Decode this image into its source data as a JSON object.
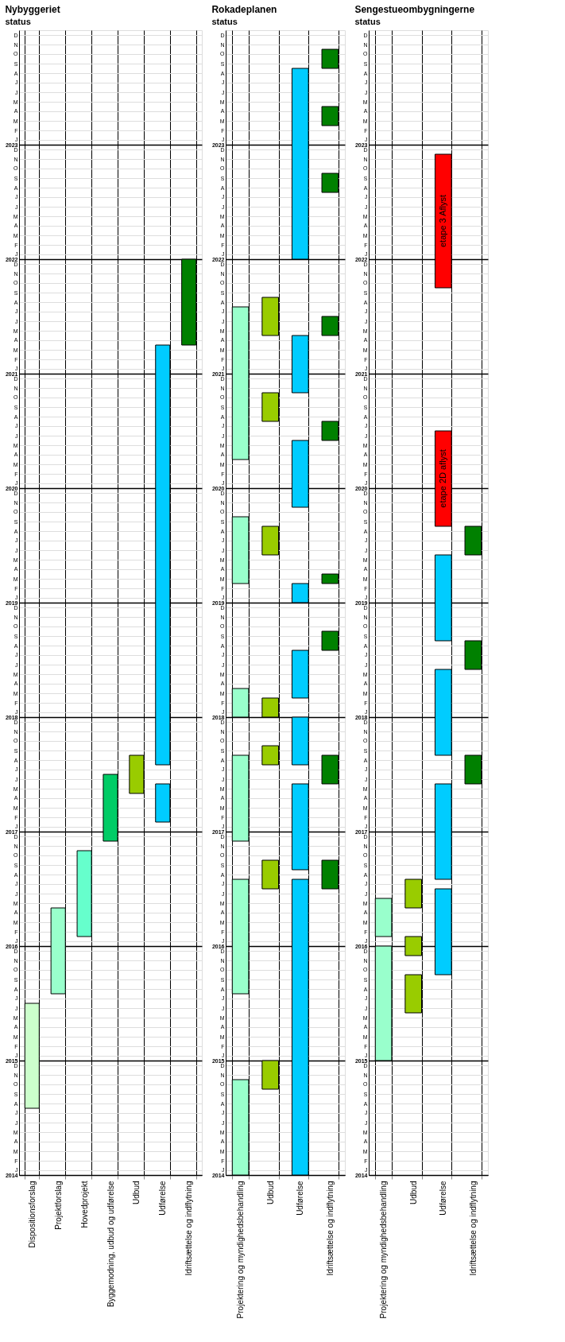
{
  "chart_data": [
    {
      "type": "bar",
      "title": "Nybyggeriet",
      "annotations": [
        "status"
      ],
      "grid": true,
      "categories": [
        "Dispositionsforslag",
        "Projektforslag",
        "Hovedprojekt",
        "Byggemodning, udbud og udførelse",
        "Udbud",
        "Udførelse",
        "Idriftsættelse og indflytning"
      ],
      "ylim": [
        2014,
        2024
      ],
      "yticks": [
        2014,
        {
          "value": 2014.0417,
          "label": "J"
        },
        {
          "value": 2014.125,
          "label": "F"
        },
        {
          "value": 2014.2083,
          "label": "M"
        },
        {
          "value": 2014.2917,
          "label": "A"
        },
        {
          "value": 2014.375,
          "label": "M"
        },
        {
          "value": 2014.4583,
          "label": "J"
        },
        {
          "value": 2014.5417,
          "label": "J"
        },
        {
          "value": 2014.625,
          "label": "A"
        },
        {
          "value": 2014.7083,
          "label": "S"
        },
        {
          "value": 2014.7917,
          "label": "O"
        },
        {
          "value": 2014.875,
          "label": "N"
        },
        {
          "value": 2014.9583,
          "label": "D"
        },
        2015,
        {
          "value": 2015.0417,
          "label": "J"
        },
        {
          "value": 2015.125,
          "label": "F"
        },
        {
          "value": 2015.2083,
          "label": "M"
        },
        {
          "value": 2015.2917,
          "label": "A"
        },
        {
          "value": 2015.375,
          "label": "M"
        },
        {
          "value": 2015.4583,
          "label": "J"
        },
        {
          "value": 2015.5417,
          "label": "J"
        },
        {
          "value": 2015.625,
          "label": "A"
        },
        {
          "value": 2015.7083,
          "label": "S"
        },
        {
          "value": 2015.7917,
          "label": "O"
        },
        {
          "value": 2015.875,
          "label": "N"
        },
        {
          "value": 2015.9583,
          "label": "D"
        },
        2016,
        {
          "value": 2016.0417,
          "label": "J"
        },
        {
          "value": 2016.125,
          "label": "F"
        },
        {
          "value": 2016.2083,
          "label": "M"
        },
        {
          "value": 2016.2917,
          "label": "A"
        },
        {
          "value": 2016.375,
          "label": "M"
        },
        {
          "value": 2016.4583,
          "label": "J"
        },
        {
          "value": 2016.5417,
          "label": "J"
        },
        {
          "value": 2016.625,
          "label": "A"
        },
        {
          "value": 2016.7083,
          "label": "S"
        },
        {
          "value": 2016.7917,
          "label": "O"
        },
        {
          "value": 2016.875,
          "label": "N"
        },
        {
          "value": 2016.9583,
          "label": "D"
        },
        2017,
        {
          "value": 2017.0417,
          "label": "J"
        },
        {
          "value": 2017.125,
          "label": "F"
        },
        {
          "value": 2017.2083,
          "label": "M"
        },
        {
          "value": 2017.2917,
          "label": "A"
        },
        {
          "value": 2017.375,
          "label": "M"
        },
        {
          "value": 2017.4583,
          "label": "J"
        },
        {
          "value": 2017.5417,
          "label": "J"
        },
        {
          "value": 2017.625,
          "label": "A"
        },
        {
          "value": 2017.7083,
          "label": "S"
        },
        {
          "value": 2017.7917,
          "label": "O"
        },
        {
          "value": 2017.875,
          "label": "N"
        },
        {
          "value": 2017.9583,
          "label": "D"
        },
        2018,
        {
          "value": 2018.0417,
          "label": "J"
        },
        {
          "value": 2018.125,
          "label": "F"
        },
        {
          "value": 2018.2083,
          "label": "M"
        },
        {
          "value": 2018.2917,
          "label": "A"
        },
        {
          "value": 2018.375,
          "label": "M"
        },
        {
          "value": 2018.4583,
          "label": "J"
        },
        {
          "value": 2018.5417,
          "label": "J"
        },
        {
          "value": 2018.625,
          "label": "A"
        },
        {
          "value": 2018.7083,
          "label": "S"
        },
        {
          "value": 2018.7917,
          "label": "O"
        },
        {
          "value": 2018.875,
          "label": "N"
        },
        {
          "value": 2018.9583,
          "label": "D"
        },
        2019,
        {
          "value": 2019.0417,
          "label": "J"
        },
        {
          "value": 2019.125,
          "label": "F"
        },
        {
          "value": 2019.2083,
          "label": "M"
        },
        {
          "value": 2019.2917,
          "label": "A"
        },
        {
          "value": 2019.375,
          "label": "M"
        },
        {
          "value": 2019.4583,
          "label": "J"
        },
        {
          "value": 2019.5417,
          "label": "J"
        },
        {
          "value": 2019.625,
          "label": "A"
        },
        {
          "value": 2019.7083,
          "label": "S"
        },
        {
          "value": 2019.7917,
          "label": "O"
        },
        {
          "value": 2019.875,
          "label": "N"
        },
        {
          "value": 2019.9583,
          "label": "D"
        },
        2020,
        {
          "value": 2020.0417,
          "label": "J"
        },
        {
          "value": 2020.125,
          "label": "F"
        },
        {
          "value": 2020.2083,
          "label": "M"
        },
        {
          "value": 2020.2917,
          "label": "A"
        },
        {
          "value": 2020.375,
          "label": "M"
        },
        {
          "value": 2020.4583,
          "label": "J"
        },
        {
          "value": 2020.5417,
          "label": "J"
        },
        {
          "value": 2020.625,
          "label": "A"
        },
        {
          "value": 2020.7083,
          "label": "S"
        },
        {
          "value": 2020.7917,
          "label": "O"
        },
        {
          "value": 2020.875,
          "label": "N"
        },
        {
          "value": 2020.9583,
          "label": "D"
        },
        2021,
        {
          "value": 2021.0417,
          "label": "J"
        },
        {
          "value": 2021.125,
          "label": "F"
        },
        {
          "value": 2021.2083,
          "label": "M"
        },
        {
          "value": 2021.2917,
          "label": "A"
        },
        {
          "value": 2021.375,
          "label": "M"
        },
        {
          "value": 2021.4583,
          "label": "J"
        },
        {
          "value": 2021.5417,
          "label": "J"
        },
        {
          "value": 2021.625,
          "label": "A"
        },
        {
          "value": 2021.7083,
          "label": "S"
        },
        {
          "value": 2021.7917,
          "label": "O"
        },
        {
          "value": 2021.875,
          "label": "N"
        },
        {
          "value": 2021.9583,
          "label": "D"
        },
        2022,
        {
          "value": 2022.0417,
          "label": "J"
        },
        {
          "value": 2022.125,
          "label": "F"
        },
        {
          "value": 2022.2083,
          "label": "M"
        },
        {
          "value": 2022.2917,
          "label": "A"
        },
        {
          "value": 2022.375,
          "label": "M"
        },
        {
          "value": 2022.4583,
          "label": "J"
        },
        {
          "value": 2022.5417,
          "label": "J"
        },
        {
          "value": 2022.625,
          "label": "A"
        },
        {
          "value": 2022.7083,
          "label": "S"
        },
        {
          "value": 2022.7917,
          "label": "O"
        },
        {
          "value": 2022.875,
          "label": "N"
        },
        {
          "value": 2022.9583,
          "label": "D"
        },
        2023,
        {
          "value": 2023.0417,
          "label": "J"
        },
        {
          "value": 2023.125,
          "label": "F"
        },
        {
          "value": 2023.2083,
          "label": "M"
        },
        {
          "value": 2023.2917,
          "label": "A"
        },
        {
          "value": 2023.375,
          "label": "M"
        },
        {
          "value": 2023.4583,
          "label": "J"
        },
        {
          "value": 2023.5417,
          "label": "J"
        },
        {
          "value": 2023.625,
          "label": "A"
        },
        {
          "value": 2023.7083,
          "label": "S"
        },
        {
          "value": 2023.7917,
          "label": "O"
        },
        {
          "value": 2023.875,
          "label": "N"
        },
        {
          "value": 2023.9583,
          "label": "D"
        }
      ],
      "series": [
        {
          "base": [
            2014.5833,
            2015.5833,
            2016.0833,
            2016.9167,
            2017.3333,
            2017.0833,
            2021.25
          ],
          "values": [
            0.9167,
            0.75,
            0.75,
            0.5833,
            0.3333,
            0.3333,
            0.75
          ],
          "colors": [
            "#ccffcc",
            "#99ffcc",
            "#66ffcc",
            "#00cc66",
            "#99cc00",
            "#00ccff",
            "#008000"
          ]
        },
        {
          "base": [
            null,
            null,
            null,
            null,
            null,
            2017.5833,
            null
          ],
          "values": [
            null,
            null,
            null,
            null,
            null,
            3.6667,
            null
          ],
          "colors": [
            null,
            null,
            null,
            null,
            null,
            "#00ccff",
            null
          ]
        }
      ]
    },
    {
      "type": "bar",
      "title": "Rokadeplanen",
      "annotations": [
        "status"
      ],
      "grid": true,
      "categories": [
        "Projektering og myndighedsbehandling",
        "Udbud",
        "Udførelse",
        "Idriftsættelse og indflytning"
      ],
      "ylim": [
        2014,
        2024
      ],
      "yticks": [
        2014,
        {
          "value": 2014.0417,
          "label": "J"
        },
        {
          "value": 2014.125,
          "label": "F"
        },
        {
          "value": 2014.2083,
          "label": "M"
        },
        {
          "value": 2014.2917,
          "label": "A"
        },
        {
          "value": 2014.375,
          "label": "M"
        },
        {
          "value": 2014.4583,
          "label": "J"
        },
        {
          "value": 2014.5417,
          "label": "J"
        },
        {
          "value": 2014.625,
          "label": "A"
        },
        {
          "value": 2014.7083,
          "label": "S"
        },
        {
          "value": 2014.7917,
          "label": "O"
        },
        {
          "value": 2014.875,
          "label": "N"
        },
        {
          "value": 2014.9583,
          "label": "D"
        },
        2015,
        {
          "value": 2015.0417,
          "label": "J"
        },
        {
          "value": 2015.125,
          "label": "F"
        },
        {
          "value": 2015.2083,
          "label": "M"
        },
        {
          "value": 2015.2917,
          "label": "A"
        },
        {
          "value": 2015.375,
          "label": "M"
        },
        {
          "value": 2015.4583,
          "label": "J"
        },
        {
          "value": 2015.5417,
          "label": "J"
        },
        {
          "value": 2015.625,
          "label": "A"
        },
        {
          "value": 2015.7083,
          "label": "S"
        },
        {
          "value": 2015.7917,
          "label": "O"
        },
        {
          "value": 2015.875,
          "label": "N"
        },
        {
          "value": 2015.9583,
          "label": "D"
        },
        2016,
        {
          "value": 2016.0417,
          "label": "J"
        },
        {
          "value": 2016.125,
          "label": "F"
        },
        {
          "value": 2016.2083,
          "label": "M"
        },
        {
          "value": 2016.2917,
          "label": "A"
        },
        {
          "value": 2016.375,
          "label": "M"
        },
        {
          "value": 2016.4583,
          "label": "J"
        },
        {
          "value": 2016.5417,
          "label": "J"
        },
        {
          "value": 2016.625,
          "label": "A"
        },
        {
          "value": 2016.7083,
          "label": "S"
        },
        {
          "value": 2016.7917,
          "label": "O"
        },
        {
          "value": 2016.875,
          "label": "N"
        },
        {
          "value": 2016.9583,
          "label": "D"
        },
        2017,
        {
          "value": 2017.0417,
          "label": "J"
        },
        {
          "value": 2017.125,
          "label": "F"
        },
        {
          "value": 2017.2083,
          "label": "M"
        },
        {
          "value": 2017.2917,
          "label": "A"
        },
        {
          "value": 2017.375,
          "label": "M"
        },
        {
          "value": 2017.4583,
          "label": "J"
        },
        {
          "value": 2017.5417,
          "label": "J"
        },
        {
          "value": 2017.625,
          "label": "A"
        },
        {
          "value": 2017.7083,
          "label": "S"
        },
        {
          "value": 2017.7917,
          "label": "O"
        },
        {
          "value": 2017.875,
          "label": "N"
        },
        {
          "value": 2017.9583,
          "label": "D"
        },
        2018,
        {
          "value": 2018.0417,
          "label": "J"
        },
        {
          "value": 2018.125,
          "label": "F"
        },
        {
          "value": 2018.2083,
          "label": "M"
        },
        {
          "value": 2018.2917,
          "label": "A"
        },
        {
          "value": 2018.375,
          "label": "M"
        },
        {
          "value": 2018.4583,
          "label": "J"
        },
        {
          "value": 2018.5417,
          "label": "J"
        },
        {
          "value": 2018.625,
          "label": "A"
        },
        {
          "value": 2018.7083,
          "label": "S"
        },
        {
          "value": 2018.7917,
          "label": "O"
        },
        {
          "value": 2018.875,
          "label": "N"
        },
        {
          "value": 2018.9583,
          "label": "D"
        },
        2019,
        {
          "value": 2019.0417,
          "label": "J"
        },
        {
          "value": 2019.125,
          "label": "F"
        },
        {
          "value": 2019.2083,
          "label": "M"
        },
        {
          "value": 2019.2917,
          "label": "A"
        },
        {
          "value": 2019.375,
          "label": "M"
        },
        {
          "value": 2019.4583,
          "label": "J"
        },
        {
          "value": 2019.5417,
          "label": "J"
        },
        {
          "value": 2019.625,
          "label": "A"
        },
        {
          "value": 2019.7083,
          "label": "S"
        },
        {
          "value": 2019.7917,
          "label": "O"
        },
        {
          "value": 2019.875,
          "label": "N"
        },
        {
          "value": 2019.9583,
          "label": "D"
        },
        2020,
        {
          "value": 2020.0417,
          "label": "J"
        },
        {
          "value": 2020.125,
          "label": "F"
        },
        {
          "value": 2020.2083,
          "label": "M"
        },
        {
          "value": 2020.2917,
          "label": "A"
        },
        {
          "value": 2020.375,
          "label": "M"
        },
        {
          "value": 2020.4583,
          "label": "J"
        },
        {
          "value": 2020.5417,
          "label": "J"
        },
        {
          "value": 2020.625,
          "label": "A"
        },
        {
          "value": 2020.7083,
          "label": "S"
        },
        {
          "value": 2020.7917,
          "label": "O"
        },
        {
          "value": 2020.875,
          "label": "N"
        },
        {
          "value": 2020.9583,
          "label": "D"
        },
        2021,
        {
          "value": 2021.0417,
          "label": "J"
        },
        {
          "value": 2021.125,
          "label": "F"
        },
        {
          "value": 2021.2083,
          "label": "M"
        },
        {
          "value": 2021.2917,
          "label": "A"
        },
        {
          "value": 2021.375,
          "label": "M"
        },
        {
          "value": 2021.4583,
          "label": "J"
        },
        {
          "value": 2021.5417,
          "label": "J"
        },
        {
          "value": 2021.625,
          "label": "A"
        },
        {
          "value": 2021.7083,
          "label": "S"
        },
        {
          "value": 2021.7917,
          "label": "O"
        },
        {
          "value": 2021.875,
          "label": "N"
        },
        {
          "value": 2021.9583,
          "label": "D"
        },
        2022,
        {
          "value": 2022.0417,
          "label": "J"
        },
        {
          "value": 2022.125,
          "label": "F"
        },
        {
          "value": 2022.2083,
          "label": "M"
        },
        {
          "value": 2022.2917,
          "label": "A"
        },
        {
          "value": 2022.375,
          "label": "M"
        },
        {
          "value": 2022.4583,
          "label": "J"
        },
        {
          "value": 2022.5417,
          "label": "J"
        },
        {
          "value": 2022.625,
          "label": "A"
        },
        {
          "value": 2022.7083,
          "label": "S"
        },
        {
          "value": 2022.7917,
          "label": "O"
        },
        {
          "value": 2022.875,
          "label": "N"
        },
        {
          "value": 2022.9583,
          "label": "D"
        },
        2023,
        {
          "value": 2023.0417,
          "label": "J"
        },
        {
          "value": 2023.125,
          "label": "F"
        },
        {
          "value": 2023.2083,
          "label": "M"
        },
        {
          "value": 2023.2917,
          "label": "A"
        },
        {
          "value": 2023.375,
          "label": "M"
        },
        {
          "value": 2023.4583,
          "label": "J"
        },
        {
          "value": 2023.5417,
          "label": "J"
        },
        {
          "value": 2023.625,
          "label": "A"
        },
        {
          "value": 2023.7083,
          "label": "S"
        },
        {
          "value": 2023.7917,
          "label": "O"
        },
        {
          "value": 2023.875,
          "label": "N"
        },
        {
          "value": 2023.9583,
          "label": "D"
        }
      ],
      "series": [
        {
          "base": [
            2014,
            2014.75,
            2014,
            2016.5
          ],
          "values": [
            0.8333,
            0.25,
            2.5833,
            0.25
          ],
          "colors": [
            "#99ffcc",
            "#99cc00",
            "#00ccff",
            "#008000"
          ]
        },
        {
          "base": [
            2015.5833,
            2016.5,
            2016.6667,
            2017.4167
          ],
          "values": [
            1,
            0.25,
            0.75,
            0.25
          ],
          "colors": [
            "#99ffcc",
            "#99cc00",
            "#00ccff",
            "#008000"
          ]
        },
        {
          "base": [
            2016.9167,
            2017.5833,
            2017.5833,
            2018.5833
          ],
          "values": [
            0.75,
            0.1667,
            0.4167,
            0.1667
          ],
          "colors": [
            "#99ffcc",
            "#99cc00",
            "#00ccff",
            "#008000"
          ]
        },
        {
          "base": [
            2018,
            2018,
            2018.1667,
            2019.1667
          ],
          "values": [
            0.25,
            0.1667,
            0.4167,
            0.0833
          ],
          "colors": [
            "#99ffcc",
            "#99cc00",
            "#00ccff",
            "#008000"
          ]
        },
        {
          "base": [
            2019.1667,
            2019.4167,
            2019,
            2020.4167
          ],
          "values": [
            0.5833,
            0.25,
            0.1667,
            0.1667
          ],
          "colors": [
            "#99ffcc",
            "#99cc00",
            "#00ccff",
            "#008000"
          ]
        },
        {
          "base": [
            2020.25,
            2020.5833,
            2019.8333,
            2021.3333
          ],
          "values": [
            1.3333,
            0.25,
            0.5833,
            0.1667
          ],
          "colors": [
            "#99ffcc",
            "#99cc00",
            "#00ccff",
            "#008000"
          ]
        },
        {
          "base": [
            null,
            2021.3333,
            2020.8333,
            2022.5833
          ],
          "values": [
            null,
            0.3333,
            0.5,
            0.1667
          ],
          "colors": [
            null,
            "#99cc00",
            "#00ccff",
            "#008000"
          ]
        },
        {
          "base": [
            null,
            null,
            2022,
            2023.1667
          ],
          "values": [
            null,
            null,
            1.6667,
            0.1667
          ],
          "colors": [
            null,
            null,
            "#00ccff",
            "#008000"
          ]
        },
        {
          "base": [
            null,
            null,
            null,
            2023.6667
          ],
          "values": [
            null,
            null,
            null,
            0.1667
          ],
          "colors": [
            null,
            null,
            null,
            "#008000"
          ]
        }
      ]
    },
    {
      "type": "bar",
      "title": "Sengestueombygningerne",
      "annotations": [
        "status"
      ],
      "grid": true,
      "categories": [
        "Projektering og myndighedsbehandling",
        "Udbud",
        "Udførelse",
        "Idriftsættelse og indflytning"
      ],
      "ylim": [
        2014,
        2024
      ],
      "yticks": [
        2014,
        {
          "value": 2014.0417,
          "label": "J"
        },
        {
          "value": 2014.125,
          "label": "F"
        },
        {
          "value": 2014.2083,
          "label": "M"
        },
        {
          "value": 2014.2917,
          "label": "A"
        },
        {
          "value": 2014.375,
          "label": "M"
        },
        {
          "value": 2014.4583,
          "label": "J"
        },
        {
          "value": 2014.5417,
          "label": "J"
        },
        {
          "value": 2014.625,
          "label": "A"
        },
        {
          "value": 2014.7083,
          "label": "S"
        },
        {
          "value": 2014.7917,
          "label": "O"
        },
        {
          "value": 2014.875,
          "label": "N"
        },
        {
          "value": 2014.9583,
          "label": "D"
        },
        2015,
        {
          "value": 2015.0417,
          "label": "J"
        },
        {
          "value": 2015.125,
          "label": "F"
        },
        {
          "value": 2015.2083,
          "label": "M"
        },
        {
          "value": 2015.2917,
          "label": "A"
        },
        {
          "value": 2015.375,
          "label": "M"
        },
        {
          "value": 2015.4583,
          "label": "J"
        },
        {
          "value": 2015.5417,
          "label": "J"
        },
        {
          "value": 2015.625,
          "label": "A"
        },
        {
          "value": 2015.7083,
          "label": "S"
        },
        {
          "value": 2015.7917,
          "label": "O"
        },
        {
          "value": 2015.875,
          "label": "N"
        },
        {
          "value": 2015.9583,
          "label": "D"
        },
        2016,
        {
          "value": 2016.0417,
          "label": "J"
        },
        {
          "value": 2016.125,
          "label": "F"
        },
        {
          "value": 2016.2083,
          "label": "M"
        },
        {
          "value": 2016.2917,
          "label": "A"
        },
        {
          "value": 2016.375,
          "label": "M"
        },
        {
          "value": 2016.4583,
          "label": "J"
        },
        {
          "value": 2016.5417,
          "label": "J"
        },
        {
          "value": 2016.625,
          "label": "A"
        },
        {
          "value": 2016.7083,
          "label": "S"
        },
        {
          "value": 2016.7917,
          "label": "O"
        },
        {
          "value": 2016.875,
          "label": "N"
        },
        {
          "value": 2016.9583,
          "label": "D"
        },
        2017,
        {
          "value": 2017.0417,
          "label": "J"
        },
        {
          "value": 2017.125,
          "label": "F"
        },
        {
          "value": 2017.2083,
          "label": "M"
        },
        {
          "value": 2017.2917,
          "label": "A"
        },
        {
          "value": 2017.375,
          "label": "M"
        },
        {
          "value": 2017.4583,
          "label": "J"
        },
        {
          "value": 2017.5417,
          "label": "J"
        },
        {
          "value": 2017.625,
          "label": "A"
        },
        {
          "value": 2017.7083,
          "label": "S"
        },
        {
          "value": 2017.7917,
          "label": "O"
        },
        {
          "value": 2017.875,
          "label": "N"
        },
        {
          "value": 2017.9583,
          "label": "D"
        },
        2018,
        {
          "value": 2018.0417,
          "label": "J"
        },
        {
          "value": 2018.125,
          "label": "F"
        },
        {
          "value": 2018.2083,
          "label": "M"
        },
        {
          "value": 2018.2917,
          "label": "A"
        },
        {
          "value": 2018.375,
          "label": "M"
        },
        {
          "value": 2018.4583,
          "label": "J"
        },
        {
          "value": 2018.5417,
          "label": "J"
        },
        {
          "value": 2018.625,
          "label": "A"
        },
        {
          "value": 2018.7083,
          "label": "S"
        },
        {
          "value": 2018.7917,
          "label": "O"
        },
        {
          "value": 2018.875,
          "label": "N"
        },
        {
          "value": 2018.9583,
          "label": "D"
        },
        2019,
        {
          "value": 2019.0417,
          "label": "J"
        },
        {
          "value": 2019.125,
          "label": "F"
        },
        {
          "value": 2019.2083,
          "label": "M"
        },
        {
          "value": 2019.2917,
          "label": "A"
        },
        {
          "value": 2019.375,
          "label": "M"
        },
        {
          "value": 2019.4583,
          "label": "J"
        },
        {
          "value": 2019.5417,
          "label": "J"
        },
        {
          "value": 2019.625,
          "label": "A"
        },
        {
          "value": 2019.7083,
          "label": "S"
        },
        {
          "value": 2019.7917,
          "label": "O"
        },
        {
          "value": 2019.875,
          "label": "N"
        },
        {
          "value": 2019.9583,
          "label": "D"
        },
        2020,
        {
          "value": 2020.0417,
          "label": "J"
        },
        {
          "value": 2020.125,
          "label": "F"
        },
        {
          "value": 2020.2083,
          "label": "M"
        },
        {
          "value": 2020.2917,
          "label": "A"
        },
        {
          "value": 2020.375,
          "label": "M"
        },
        {
          "value": 2020.4583,
          "label": "J"
        },
        {
          "value": 2020.5417,
          "label": "J"
        },
        {
          "value": 2020.625,
          "label": "A"
        },
        {
          "value": 2020.7083,
          "label": "S"
        },
        {
          "value": 2020.7917,
          "label": "O"
        },
        {
          "value": 2020.875,
          "label": "N"
        },
        {
          "value": 2020.9583,
          "label": "D"
        },
        2021,
        {
          "value": 2021.0417,
          "label": "J"
        },
        {
          "value": 2021.125,
          "label": "F"
        },
        {
          "value": 2021.2083,
          "label": "M"
        },
        {
          "value": 2021.2917,
          "label": "A"
        },
        {
          "value": 2021.375,
          "label": "M"
        },
        {
          "value": 2021.4583,
          "label": "J"
        },
        {
          "value": 2021.5417,
          "label": "J"
        },
        {
          "value": 2021.625,
          "label": "A"
        },
        {
          "value": 2021.7083,
          "label": "S"
        },
        {
          "value": 2021.7917,
          "label": "O"
        },
        {
          "value": 2021.875,
          "label": "N"
        },
        {
          "value": 2021.9583,
          "label": "D"
        },
        2022,
        {
          "value": 2022.0417,
          "label": "J"
        },
        {
          "value": 2022.125,
          "label": "F"
        },
        {
          "value": 2022.2083,
          "label": "M"
        },
        {
          "value": 2022.2917,
          "label": "A"
        },
        {
          "value": 2022.375,
          "label": "M"
        },
        {
          "value": 2022.4583,
          "label": "J"
        },
        {
          "value": 2022.5417,
          "label": "J"
        },
        {
          "value": 2022.625,
          "label": "A"
        },
        {
          "value": 2022.7083,
          "label": "S"
        },
        {
          "value": 2022.7917,
          "label": "O"
        },
        {
          "value": 2022.875,
          "label": "N"
        },
        {
          "value": 2022.9583,
          "label": "D"
        },
        2023,
        {
          "value": 2023.0417,
          "label": "J"
        },
        {
          "value": 2023.125,
          "label": "F"
        },
        {
          "value": 2023.2083,
          "label": "M"
        },
        {
          "value": 2023.2917,
          "label": "A"
        },
        {
          "value": 2023.375,
          "label": "M"
        },
        {
          "value": 2023.4583,
          "label": "J"
        },
        {
          "value": 2023.5417,
          "label": "J"
        },
        {
          "value": 2023.625,
          "label": "A"
        },
        {
          "value": 2023.7083,
          "label": "S"
        },
        {
          "value": 2023.7917,
          "label": "O"
        },
        {
          "value": 2023.875,
          "label": "N"
        },
        {
          "value": 2023.9583,
          "label": "D"
        }
      ],
      "series": [
        {
          "base": [
            2015,
            2015.4167,
            2015.75,
            2017.4167
          ],
          "values": [
            1,
            0.3333,
            0.75,
            0.25
          ],
          "colors": [
            "#99ffcc",
            "#99cc00",
            "#00ccff",
            "#008000"
          ]
        },
        {
          "base": [
            2016.0833,
            2015.9167,
            2016.5833,
            2018.4167
          ],
          "values": [
            0.3333,
            0.1667,
            0.8333,
            0.25
          ],
          "colors": [
            "#99ffcc",
            "#99cc00",
            "#00ccff",
            "#008000"
          ]
        },
        {
          "base": [
            null,
            2016.3333,
            2017.6667,
            2019.4167
          ],
          "values": [
            null,
            0.25,
            0.75,
            0.25
          ],
          "colors": [
            null,
            "#99cc00",
            "#00ccff",
            "#008000"
          ]
        },
        {
          "base": [
            null,
            null,
            2018.6667,
            null
          ],
          "values": [
            null,
            null,
            0.75,
            null
          ],
          "colors": [
            null,
            null,
            "#00ccff",
            null
          ]
        },
        {
          "base": [
            null,
            null,
            2019.6667,
            null
          ],
          "values": [
            null,
            null,
            0.8333,
            null
          ],
          "colors": [
            null,
            null,
            "#ff0000",
            null
          ],
          "value_labels": [
            null,
            null,
            "etape 2D aflyst",
            null
          ]
        },
        {
          "base": [
            null,
            null,
            2021.75,
            null
          ],
          "values": [
            null,
            null,
            1.1667,
            null
          ],
          "colors": [
            null,
            null,
            "#ff0000",
            null
          ],
          "value_labels": [
            null,
            null,
            "etape 3 Aflyst",
            null
          ]
        }
      ]
    }
  ]
}
